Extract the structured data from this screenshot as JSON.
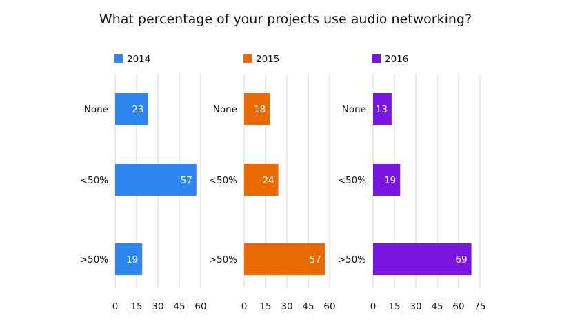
{
  "title": "What percentage of your projects use audio networking?",
  "chart_data": {
    "type": "bar",
    "orientation": "horizontal",
    "title": "What percentage of your projects use audio networking?",
    "categories": [
      "None",
      "<50%",
      ">50%"
    ],
    "grid": true,
    "panels": [
      {
        "name": "2014",
        "color": "#2e86f0",
        "values": [
          23,
          57,
          19
        ],
        "xlim": [
          0,
          60
        ],
        "ticks": [
          0,
          15,
          30,
          45,
          60
        ],
        "tick_labels": [
          "0",
          "15",
          "30",
          "45",
          "60"
        ]
      },
      {
        "name": "2015",
        "color": "#e86a00",
        "values": [
          18,
          24,
          57
        ],
        "xlim": [
          0,
          60
        ],
        "ticks": [
          0,
          15,
          30,
          45,
          60
        ],
        "tick_labels": [
          "0",
          "15",
          "30",
          "45",
          "60"
        ]
      },
      {
        "name": "2016",
        "color": "#7a14e0",
        "values": [
          13,
          19,
          69
        ],
        "xlim": [
          0,
          75
        ],
        "ticks": [
          0,
          15,
          30,
          45,
          60,
          75
        ],
        "tick_labels": [
          "0",
          "15",
          "30",
          "45",
          "60",
          "75"
        ]
      }
    ]
  }
}
